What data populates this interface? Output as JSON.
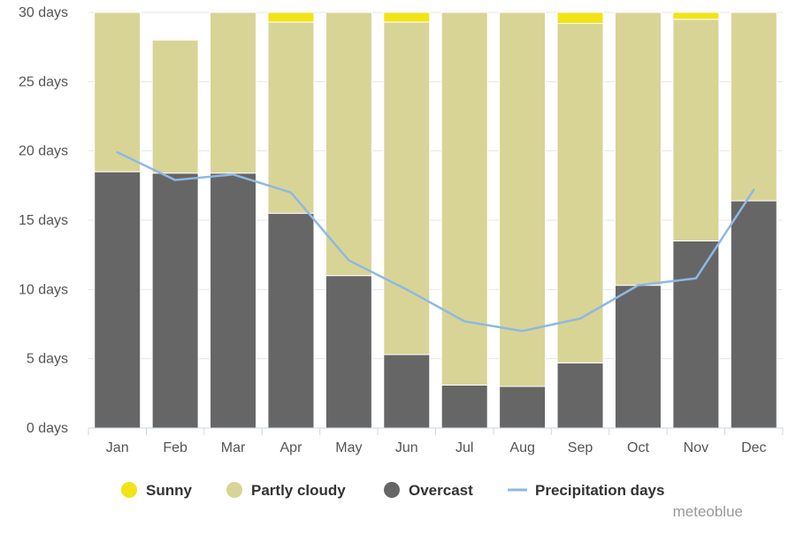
{
  "chart_data": {
    "type": "bar",
    "stacked": true,
    "categories": [
      "Jan",
      "Feb",
      "Mar",
      "Apr",
      "May",
      "Jun",
      "Jul",
      "Aug",
      "Sep",
      "Oct",
      "Nov",
      "Dec"
    ],
    "series": [
      {
        "name": "Overcast",
        "kind": "bar",
        "color": "#666666",
        "values": [
          18.5,
          18.4,
          18.4,
          15.5,
          11.0,
          5.3,
          3.1,
          3.0,
          4.7,
          10.3,
          13.5,
          16.4
        ]
      },
      {
        "name": "Partly cloudy",
        "kind": "bar",
        "color": "#d8d496",
        "values": [
          11.5,
          9.6,
          11.6,
          13.8,
          19.0,
          24.0,
          26.9,
          27.0,
          24.5,
          19.7,
          16.0,
          13.6
        ]
      },
      {
        "name": "Sunny",
        "kind": "bar",
        "color": "#f2e317",
        "values": [
          0.0,
          0.0,
          0.0,
          0.7,
          0.0,
          0.7,
          0.0,
          0.0,
          0.8,
          0.0,
          0.5,
          0.0
        ]
      },
      {
        "name": "Precipitation days",
        "kind": "line",
        "color": "#8eb8e3",
        "values": [
          19.9,
          17.9,
          18.3,
          17.0,
          12.1,
          10.0,
          7.7,
          7.0,
          7.9,
          10.3,
          10.8,
          17.2
        ]
      }
    ],
    "yticks": [
      0,
      5,
      10,
      15,
      20,
      25,
      30
    ],
    "ytick_suffix": " days",
    "ylim": [
      0,
      30
    ],
    "xlabel": "",
    "ylabel": "",
    "grid": true,
    "legend_position": "bottom",
    "legend_order": [
      "Sunny",
      "Partly cloudy",
      "Overcast",
      "Precipitation days"
    ]
  },
  "credit": "meteoblue"
}
